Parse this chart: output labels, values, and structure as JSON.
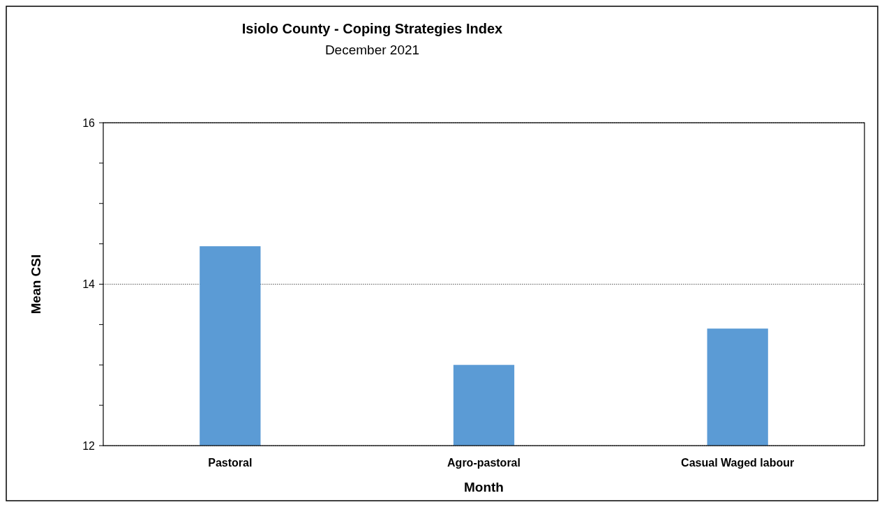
{
  "chart_data": {
    "type": "bar",
    "title": "Isiolo County - Coping Strategies Index",
    "subtitle": "December 2021",
    "xlabel": "Month",
    "ylabel": "Mean CSI",
    "categories": [
      "Pastoral",
      "Agro-pastoral",
      "Casual Waged labour"
    ],
    "values": [
      14.47,
      13.0,
      13.45
    ],
    "color": "#5b9bd5",
    "ylim": [
      12,
      16
    ],
    "yticks": [
      12,
      {
        "value": 12.5,
        "label": null
      },
      {
        "value": 13,
        "label": null
      },
      {
        "value": 13.5,
        "label": null
      },
      14,
      {
        "value": 14.5,
        "label": null
      },
      {
        "value": 15,
        "label": null
      },
      {
        "value": 15.5,
        "label": null
      },
      16
    ],
    "grid": "y"
  }
}
